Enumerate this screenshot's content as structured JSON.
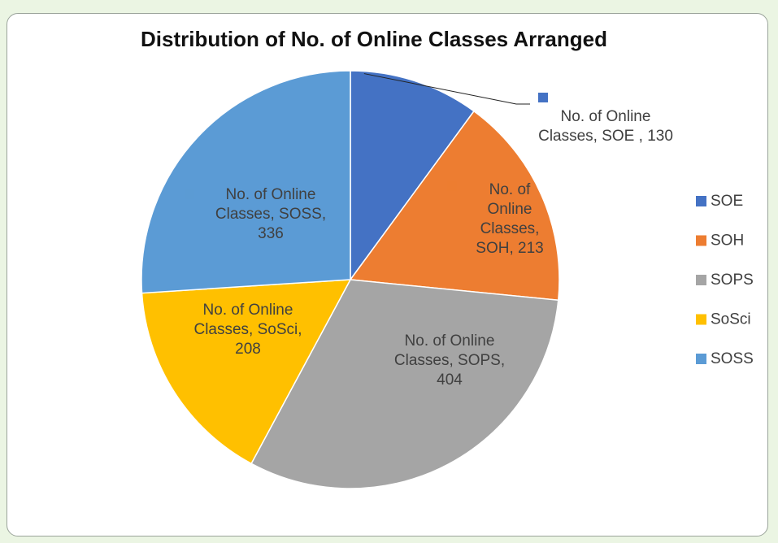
{
  "chart_data": {
    "type": "pie",
    "title": "Distribution of No. of Online Classes Arranged",
    "categories": [
      "SOE",
      "SOH",
      "SOPS",
      "SoSci",
      "SOSS"
    ],
    "values": [
      130,
      213,
      404,
      208,
      336
    ],
    "value_labels": [
      "No. of Online Classes, SOE , 130",
      "No. of Online Classes, SOH, 213",
      "No. of Online Classes, SOPS, 404",
      "No. of Online Classes, SoSci, 208",
      "No. of Online Classes, SOSS, 336"
    ],
    "colors": [
      "#4472c4",
      "#ed7d31",
      "#a5a5a5",
      "#ffc000",
      "#5b9bd5"
    ],
    "legend": "right"
  }
}
